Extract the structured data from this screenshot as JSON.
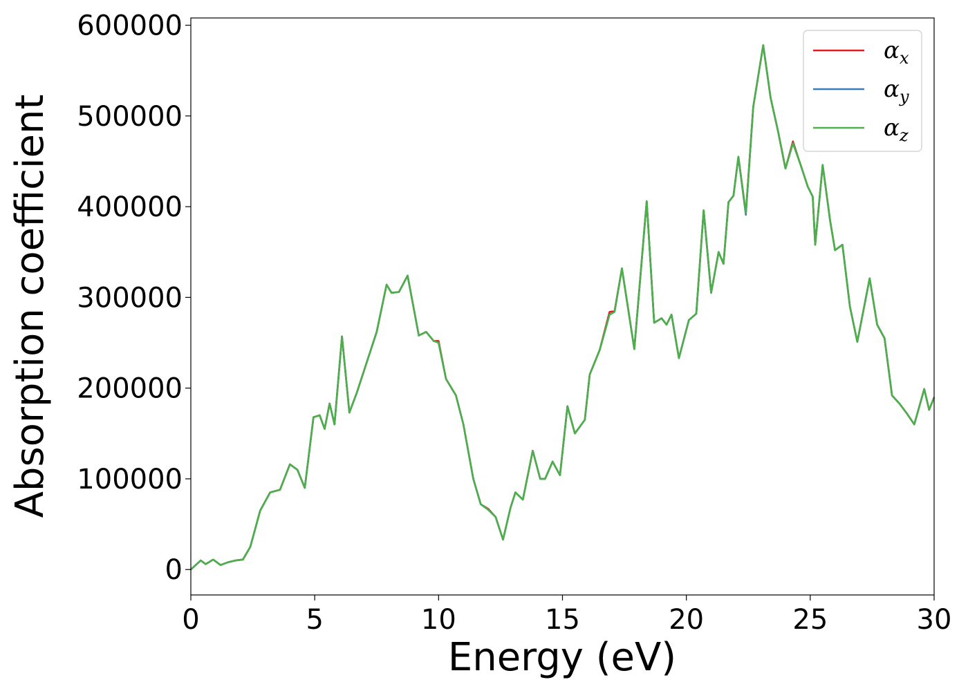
{
  "chart_data": {
    "type": "line",
    "title": "",
    "xlabel": "Energy (eV)",
    "ylabel": "Absorption coefficient",
    "xlim": [
      0,
      30
    ],
    "ylim": [
      -28000,
      608000
    ],
    "xticks": [
      0,
      5,
      10,
      15,
      20,
      25,
      30
    ],
    "xtick_labels": [
      "0",
      "5",
      "10",
      "15",
      "20",
      "25",
      "30"
    ],
    "yticks": [
      0,
      100000,
      200000,
      300000,
      400000,
      500000,
      600000
    ],
    "ytick_labels": [
      "0",
      "100000",
      "200000",
      "300000",
      "400000",
      "500000",
      "600000"
    ],
    "grid": false,
    "legend_position": "top-right",
    "series": [
      {
        "name": "α",
        "subscript": "x",
        "color": "#e41a1c",
        "points": [
          [
            0,
            0
          ],
          [
            0.4,
            10000
          ],
          [
            0.6,
            6000
          ],
          [
            0.9,
            11000
          ],
          [
            1.2,
            5000
          ],
          [
            1.5,
            8000
          ],
          [
            1.8,
            10000
          ],
          [
            2.1,
            11000
          ],
          [
            2.4,
            25000
          ],
          [
            2.8,
            65000
          ],
          [
            3.2,
            85000
          ],
          [
            3.6,
            88000
          ],
          [
            4.0,
            116000
          ],
          [
            4.3,
            110000
          ],
          [
            4.6,
            90000
          ],
          [
            4.95,
            168000
          ],
          [
            5.2,
            170000
          ],
          [
            5.4,
            155000
          ],
          [
            5.6,
            183000
          ],
          [
            5.8,
            160000
          ],
          [
            6.1,
            257000
          ],
          [
            6.4,
            173000
          ],
          [
            6.7,
            195000
          ],
          [
            7.0,
            220000
          ],
          [
            7.5,
            262000
          ],
          [
            7.9,
            314000
          ],
          [
            8.1,
            305000
          ],
          [
            8.4,
            306000
          ],
          [
            8.75,
            324000
          ],
          [
            9.2,
            258000
          ],
          [
            9.5,
            262000
          ],
          [
            9.8,
            252000
          ],
          [
            10.0,
            252000
          ],
          [
            10.3,
            210000
          ],
          [
            10.7,
            192000
          ],
          [
            11.0,
            160000
          ],
          [
            11.4,
            100000
          ],
          [
            11.7,
            72000
          ],
          [
            12.0,
            67000
          ],
          [
            12.3,
            58000
          ],
          [
            12.6,
            33000
          ],
          [
            12.9,
            68000
          ],
          [
            13.1,
            85000
          ],
          [
            13.4,
            77000
          ],
          [
            13.8,
            131000
          ],
          [
            14.1,
            100000
          ],
          [
            14.3,
            100000
          ],
          [
            14.6,
            119000
          ],
          [
            14.9,
            104000
          ],
          [
            15.2,
            180000
          ],
          [
            15.5,
            150000
          ],
          [
            15.9,
            165000
          ],
          [
            16.1,
            215000
          ],
          [
            16.5,
            242000
          ],
          [
            16.9,
            284000
          ],
          [
            17.1,
            285000
          ],
          [
            17.4,
            332000
          ],
          [
            17.9,
            243000
          ],
          [
            18.4,
            406000
          ],
          [
            18.7,
            272000
          ],
          [
            19.0,
            277000
          ],
          [
            19.2,
            270000
          ],
          [
            19.4,
            281000
          ],
          [
            19.7,
            233000
          ],
          [
            20.1,
            275000
          ],
          [
            20.4,
            282000
          ],
          [
            20.7,
            396000
          ],
          [
            21.0,
            305000
          ],
          [
            21.3,
            350000
          ],
          [
            21.5,
            337000
          ],
          [
            21.7,
            405000
          ],
          [
            21.9,
            412000
          ],
          [
            22.1,
            455000
          ],
          [
            22.4,
            393000
          ],
          [
            22.7,
            510000
          ],
          [
            23.1,
            578000
          ],
          [
            23.4,
            520000
          ],
          [
            23.7,
            483000
          ],
          [
            24.0,
            442000
          ],
          [
            24.3,
            472000
          ],
          [
            24.6,
            447000
          ],
          [
            24.9,
            422000
          ],
          [
            25.1,
            411000
          ],
          [
            25.2,
            358000
          ],
          [
            25.5,
            446000
          ],
          [
            25.8,
            385000
          ],
          [
            26.0,
            352000
          ],
          [
            26.3,
            358000
          ],
          [
            26.6,
            290000
          ],
          [
            26.9,
            251000
          ],
          [
            27.4,
            321000
          ],
          [
            27.7,
            270000
          ],
          [
            28.0,
            255000
          ],
          [
            28.3,
            192000
          ],
          [
            28.6,
            183000
          ],
          [
            28.9,
            172000
          ],
          [
            29.2,
            160000
          ],
          [
            29.6,
            199000
          ],
          [
            29.8,
            176000
          ],
          [
            30.0,
            190000
          ]
        ]
      },
      {
        "name": "α",
        "subscript": "y",
        "color": "#377eb8",
        "points": [
          [
            0,
            0
          ],
          [
            0.4,
            10000
          ],
          [
            0.6,
            6000
          ],
          [
            0.9,
            11000
          ],
          [
            1.2,
            5000
          ],
          [
            1.5,
            8000
          ],
          [
            1.8,
            10000
          ],
          [
            2.1,
            11000
          ],
          [
            2.4,
            25000
          ],
          [
            2.8,
            65000
          ],
          [
            3.2,
            85000
          ],
          [
            3.6,
            88000
          ],
          [
            4.0,
            116000
          ],
          [
            4.3,
            110000
          ],
          [
            4.6,
            90000
          ],
          [
            4.95,
            168000
          ],
          [
            5.2,
            170000
          ],
          [
            5.4,
            155000
          ],
          [
            5.6,
            183000
          ],
          [
            5.8,
            160000
          ],
          [
            6.1,
            257000
          ],
          [
            6.4,
            173000
          ],
          [
            6.7,
            195000
          ],
          [
            7.0,
            220000
          ],
          [
            7.5,
            262000
          ],
          [
            7.9,
            314000
          ],
          [
            8.1,
            305000
          ],
          [
            8.4,
            306000
          ],
          [
            8.75,
            324000
          ],
          [
            9.2,
            258000
          ],
          [
            9.5,
            262000
          ],
          [
            9.8,
            252000
          ],
          [
            10.0,
            250000
          ],
          [
            10.3,
            210000
          ],
          [
            10.7,
            192000
          ],
          [
            11.0,
            160000
          ],
          [
            11.4,
            100000
          ],
          [
            11.7,
            72000
          ],
          [
            12.0,
            66000
          ],
          [
            12.3,
            58000
          ],
          [
            12.6,
            33000
          ],
          [
            12.9,
            68000
          ],
          [
            13.1,
            85000
          ],
          [
            13.4,
            77000
          ],
          [
            13.8,
            131000
          ],
          [
            14.1,
            100000
          ],
          [
            14.3,
            100000
          ],
          [
            14.6,
            119000
          ],
          [
            14.9,
            104000
          ],
          [
            15.2,
            180000
          ],
          [
            15.5,
            150000
          ],
          [
            15.9,
            165000
          ],
          [
            16.1,
            215000
          ],
          [
            16.5,
            242000
          ],
          [
            16.9,
            281000
          ],
          [
            17.1,
            284000
          ],
          [
            17.4,
            332000
          ],
          [
            17.9,
            243000
          ],
          [
            18.4,
            406000
          ],
          [
            18.7,
            272000
          ],
          [
            19.0,
            277000
          ],
          [
            19.2,
            270000
          ],
          [
            19.4,
            281000
          ],
          [
            19.7,
            233000
          ],
          [
            20.1,
            275000
          ],
          [
            20.4,
            282000
          ],
          [
            20.7,
            396000
          ],
          [
            21.0,
            305000
          ],
          [
            21.3,
            350000
          ],
          [
            21.5,
            337000
          ],
          [
            21.7,
            405000
          ],
          [
            21.9,
            412000
          ],
          [
            22.1,
            455000
          ],
          [
            22.4,
            391000
          ],
          [
            22.7,
            510000
          ],
          [
            23.1,
            578000
          ],
          [
            23.4,
            520000
          ],
          [
            23.7,
            483000
          ],
          [
            24.0,
            442000
          ],
          [
            24.3,
            470000
          ],
          [
            24.6,
            447000
          ],
          [
            24.9,
            422000
          ],
          [
            25.1,
            411000
          ],
          [
            25.2,
            358000
          ],
          [
            25.5,
            446000
          ],
          [
            25.8,
            385000
          ],
          [
            26.0,
            352000
          ],
          [
            26.3,
            358000
          ],
          [
            26.6,
            290000
          ],
          [
            26.9,
            251000
          ],
          [
            27.4,
            321000
          ],
          [
            27.7,
            270000
          ],
          [
            28.0,
            255000
          ],
          [
            28.3,
            192000
          ],
          [
            28.6,
            183000
          ],
          [
            28.9,
            172000
          ],
          [
            29.2,
            160000
          ],
          [
            29.6,
            199000
          ],
          [
            29.8,
            176000
          ],
          [
            30.0,
            190000
          ]
        ]
      },
      {
        "name": "α",
        "subscript": "z",
        "color": "#4daf4a",
        "points": [
          [
            0,
            0
          ],
          [
            0.4,
            10000
          ],
          [
            0.6,
            6000
          ],
          [
            0.9,
            11000
          ],
          [
            1.2,
            5000
          ],
          [
            1.5,
            8000
          ],
          [
            1.8,
            10000
          ],
          [
            2.1,
            11000
          ],
          [
            2.4,
            25000
          ],
          [
            2.8,
            65000
          ],
          [
            3.2,
            85000
          ],
          [
            3.6,
            88000
          ],
          [
            4.0,
            116000
          ],
          [
            4.3,
            110000
          ],
          [
            4.6,
            90000
          ],
          [
            4.95,
            168000
          ],
          [
            5.2,
            170000
          ],
          [
            5.4,
            155000
          ],
          [
            5.6,
            183000
          ],
          [
            5.8,
            160000
          ],
          [
            6.1,
            257000
          ],
          [
            6.4,
            173000
          ],
          [
            6.7,
            195000
          ],
          [
            7.0,
            220000
          ],
          [
            7.5,
            262000
          ],
          [
            7.9,
            314000
          ],
          [
            8.1,
            305000
          ],
          [
            8.4,
            306000
          ],
          [
            8.75,
            324000
          ],
          [
            9.2,
            258000
          ],
          [
            9.5,
            262000
          ],
          [
            9.8,
            252000
          ],
          [
            10.0,
            250000
          ],
          [
            10.3,
            210000
          ],
          [
            10.7,
            192000
          ],
          [
            11.0,
            160000
          ],
          [
            11.4,
            100000
          ],
          [
            11.7,
            72000
          ],
          [
            12.0,
            66000
          ],
          [
            12.3,
            58000
          ],
          [
            12.6,
            33000
          ],
          [
            12.9,
            68000
          ],
          [
            13.1,
            85000
          ],
          [
            13.4,
            77000
          ],
          [
            13.8,
            131000
          ],
          [
            14.1,
            100000
          ],
          [
            14.3,
            100000
          ],
          [
            14.6,
            119000
          ],
          [
            14.9,
            104000
          ],
          [
            15.2,
            180000
          ],
          [
            15.5,
            150000
          ],
          [
            15.9,
            165000
          ],
          [
            16.1,
            215000
          ],
          [
            16.5,
            242000
          ],
          [
            16.9,
            281000
          ],
          [
            17.1,
            284000
          ],
          [
            17.4,
            332000
          ],
          [
            17.9,
            243000
          ],
          [
            18.4,
            406000
          ],
          [
            18.7,
            272000
          ],
          [
            19.0,
            277000
          ],
          [
            19.2,
            270000
          ],
          [
            19.4,
            281000
          ],
          [
            19.7,
            233000
          ],
          [
            20.1,
            275000
          ],
          [
            20.4,
            282000
          ],
          [
            20.7,
            396000
          ],
          [
            21.0,
            305000
          ],
          [
            21.3,
            350000
          ],
          [
            21.5,
            337000
          ],
          [
            21.7,
            405000
          ],
          [
            21.9,
            412000
          ],
          [
            22.1,
            455000
          ],
          [
            22.4,
            393000
          ],
          [
            22.7,
            510000
          ],
          [
            23.1,
            578000
          ],
          [
            23.4,
            520000
          ],
          [
            23.7,
            483000
          ],
          [
            24.0,
            442000
          ],
          [
            24.3,
            470000
          ],
          [
            24.6,
            447000
          ],
          [
            24.9,
            422000
          ],
          [
            25.1,
            411000
          ],
          [
            25.2,
            358000
          ],
          [
            25.5,
            446000
          ],
          [
            25.8,
            385000
          ],
          [
            26.0,
            352000
          ],
          [
            26.3,
            358000
          ],
          [
            26.6,
            290000
          ],
          [
            26.9,
            251000
          ],
          [
            27.4,
            321000
          ],
          [
            27.7,
            270000
          ],
          [
            28.0,
            255000
          ],
          [
            28.3,
            192000
          ],
          [
            28.6,
            183000
          ],
          [
            28.9,
            172000
          ],
          [
            29.2,
            160000
          ],
          [
            29.6,
            199000
          ],
          [
            29.8,
            176000
          ],
          [
            30.0,
            190000
          ]
        ]
      }
    ]
  }
}
